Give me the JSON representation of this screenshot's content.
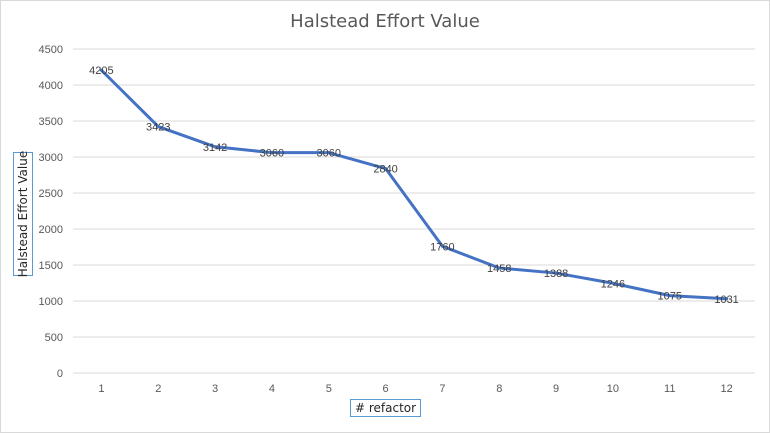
{
  "chart_data": {
    "type": "line",
    "title": "Halstead Effort Value",
    "xlabel": "# refactor",
    "ylabel": "Halstead Effort Value",
    "categories": [
      "1",
      "2",
      "3",
      "4",
      "5",
      "6",
      "7",
      "8",
      "9",
      "10",
      "11",
      "12"
    ],
    "series": [
      {
        "values": [
          4205,
          3423,
          3142,
          3060,
          3060,
          2840,
          1760,
          1458,
          1388,
          1246,
          1075,
          1031
        ],
        "data_labels": [
          "4205",
          "3423",
          "3142",
          "3060",
          "3060",
          "2840",
          "1760",
          "1458",
          "1388",
          "1246",
          "1075",
          "1031"
        ]
      }
    ],
    "ylim": [
      0,
      4500
    ],
    "yticks": [
      "0",
      "500",
      "1000",
      "1500",
      "2000",
      "2500",
      "3000",
      "3500",
      "4000",
      "4500"
    ],
    "grid": true,
    "legend": "none",
    "colors": {
      "line": "#4472c4",
      "grid": "#d9d9d9",
      "axis_text": "#595959"
    }
  }
}
